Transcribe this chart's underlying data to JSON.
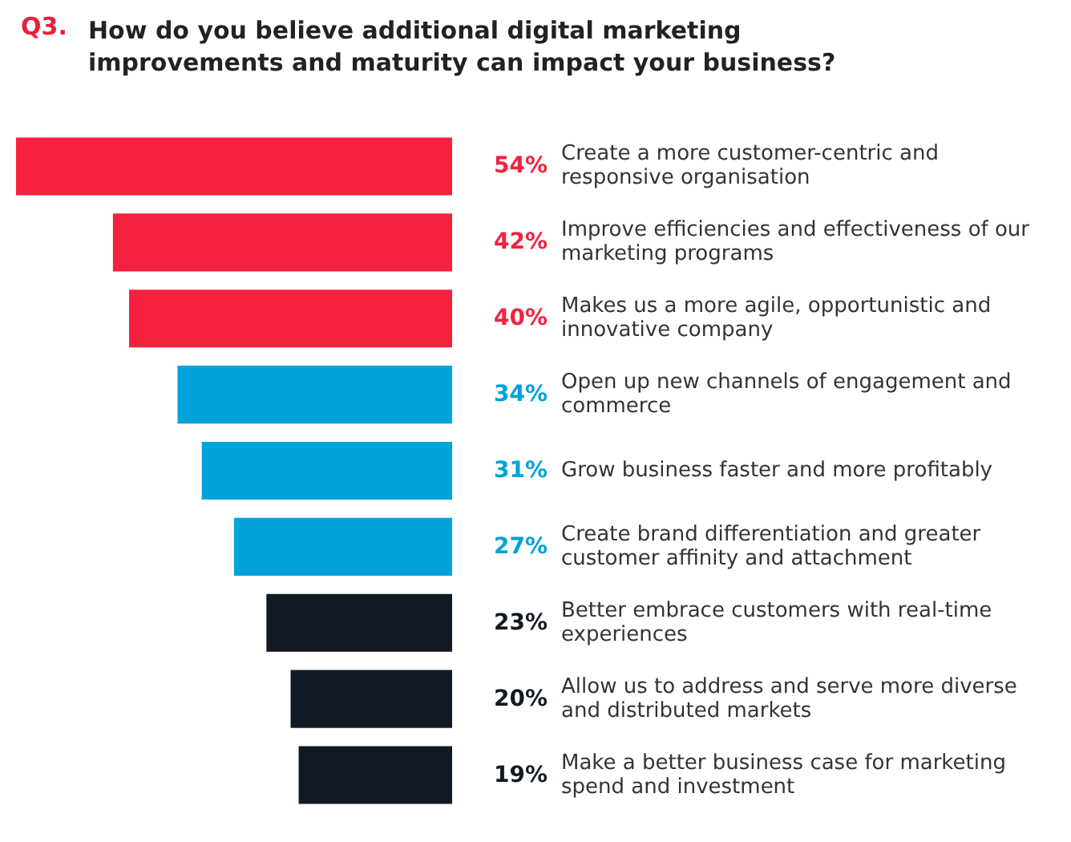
{
  "chart_data": {
    "type": "bar",
    "orientation": "horizontal",
    "title": "Q3.",
    "subtitle": "How do you believe additional digital marketing improvements and maturity can impact your business?",
    "categories": [
      "Create a more customer-centric and responsive organisation",
      "Improve efficiencies and effectiveness of our marketing programs",
      "Makes us a more agile, opportunistic and innovative company",
      "Open up new channels of engagement and commerce",
      "Grow business faster and more profitably",
      "Create brand differentiation and greater customer affinity and attachment",
      "Better embrace customers with real-time experiences",
      "Allow us to address and serve more diverse and distributed markets",
      "Make a better business case for marketing spend and investment"
    ],
    "values": [
      54,
      42,
      40,
      34,
      31,
      27,
      23,
      20,
      19
    ],
    "value_labels": [
      "54%",
      "42%",
      "40%",
      "34%",
      "31%",
      "27%",
      "23%",
      "20%",
      "19%"
    ],
    "colors": [
      "#f5213f",
      "#f5213f",
      "#f5213f",
      "#00a3d9",
      "#00a3d9",
      "#00a3d9",
      "#111a24",
      "#111a24",
      "#111a24"
    ]
  }
}
